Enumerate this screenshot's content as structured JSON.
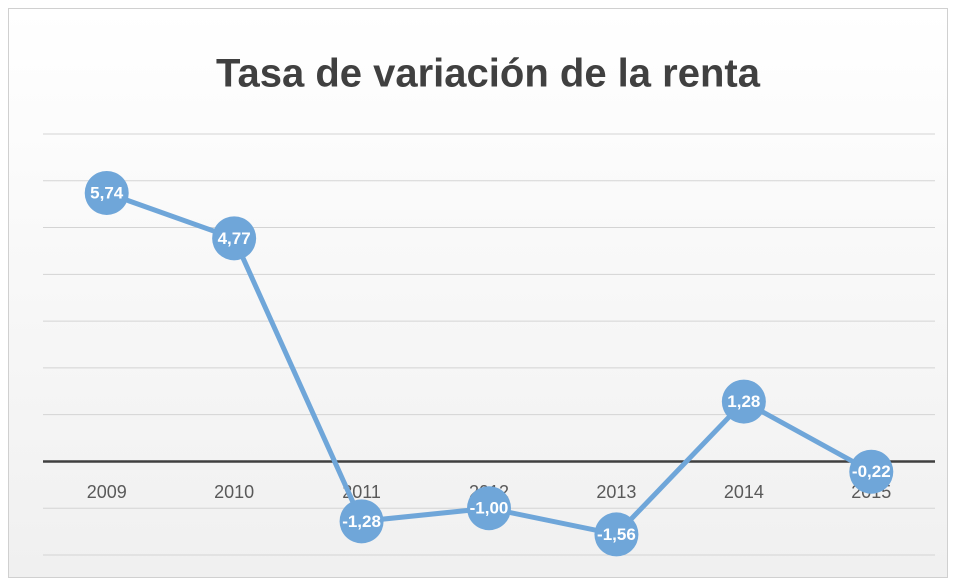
{
  "chart_data": {
    "type": "line",
    "title": "Tasa de variación de la renta",
    "categories": [
      "2009",
      "2010",
      "2011",
      "2012",
      "2013",
      "2014",
      "2015"
    ],
    "series": [
      {
        "name": "Tasa de variación de la renta",
        "color": "#6fa6d9",
        "values": [
          5.74,
          4.77,
          -1.28,
          -1.0,
          -1.56,
          1.28,
          -0.22
        ],
        "value_labels": [
          "5,74",
          "4,77",
          "-1,28",
          "-1,00",
          "-1,56",
          "1,28",
          "-0,22"
        ]
      }
    ],
    "ylim": [
      -2,
      7
    ],
    "yticks": [
      -2,
      -1,
      0,
      1,
      2,
      3,
      4,
      5,
      6,
      7
    ],
    "grid": true
  }
}
